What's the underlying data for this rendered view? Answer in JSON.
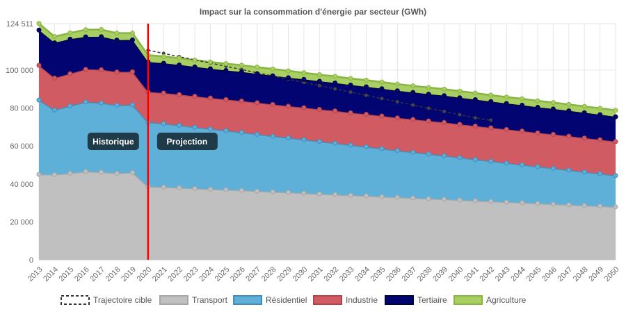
{
  "chart_data": {
    "type": "area",
    "stacked": true,
    "title": "Impact sur la consommation d'énergie par secteur (GWh)",
    "xlabel": "",
    "ylabel": "",
    "ylim": [
      0,
      124511
    ],
    "yticks": [
      0,
      20000,
      40000,
      60000,
      80000,
      100000,
      124511
    ],
    "ytick_labels": [
      "0",
      "20 000",
      "40 000",
      "60 000",
      "80 000",
      "100 000",
      "124 511"
    ],
    "categories": [
      "2013",
      "2014",
      "2015",
      "2016",
      "2017",
      "2018",
      "2019",
      "2020",
      "2021",
      "2022",
      "2023",
      "2024",
      "2025",
      "2026",
      "2027",
      "2028",
      "2029",
      "2030",
      "2031",
      "2032",
      "2033",
      "2034",
      "2035",
      "2036",
      "2037",
      "2038",
      "2039",
      "2040",
      "2041",
      "2042",
      "2043",
      "2044",
      "2045",
      "2046",
      "2047",
      "2048",
      "2049",
      "2050"
    ],
    "series": [
      {
        "name": "Transport",
        "color": "#c0c0c0",
        "stroke": "#a6a6a6",
        "values": [
          45000,
          44900,
          45600,
          46500,
          46200,
          45600,
          46000,
          38600,
          38300,
          38000,
          37600,
          37200,
          36900,
          36600,
          36200,
          35800,
          35500,
          35100,
          34700,
          34400,
          34000,
          33700,
          33300,
          32900,
          32600,
          32200,
          31900,
          31500,
          31100,
          30800,
          30400,
          30100,
          29700,
          29300,
          29000,
          28600,
          28300,
          27900
        ]
      },
      {
        "name": "Résidentiel",
        "color": "#5eb0d8",
        "stroke": "#3d8fbd",
        "values": [
          39200,
          34100,
          35500,
          36700,
          36500,
          35900,
          35700,
          33900,
          33500,
          32900,
          32300,
          31800,
          31200,
          30600,
          30000,
          29400,
          28800,
          28300,
          27700,
          27100,
          26500,
          25900,
          25300,
          24700,
          24100,
          23600,
          23000,
          22400,
          21800,
          21200,
          20600,
          20000,
          19400,
          18900,
          18300,
          17700,
          17100,
          16500
        ]
      },
      {
        "name": "Industrie",
        "color": "#d05b63",
        "stroke": "#b5424b",
        "values": [
          18300,
          16800,
          17000,
          17200,
          17500,
          17500,
          17400,
          16000,
          16100,
          16200,
          16300,
          16300,
          16400,
          16500,
          16600,
          16700,
          16700,
          16800,
          16900,
          17000,
          17000,
          17100,
          17200,
          17200,
          17300,
          17400,
          17500,
          17500,
          17600,
          17600,
          17700,
          17800,
          17800,
          17900,
          17900,
          17900,
          17900,
          17900
        ]
      },
      {
        "name": "Tertiaire",
        "color": "#020471",
        "stroke": "#01023f",
        "values": [
          18600,
          18600,
          18200,
          17100,
          17400,
          16800,
          16800,
          15800,
          15700,
          15600,
          15500,
          15400,
          15300,
          15300,
          15200,
          15100,
          15000,
          14900,
          14800,
          14700,
          14600,
          14500,
          14400,
          14300,
          14200,
          14100,
          14100,
          14000,
          13900,
          13800,
          13700,
          13600,
          13500,
          13400,
          13300,
          13300,
          13200,
          13100
        ]
      },
      {
        "name": "Agriculture",
        "color": "#a9cf64",
        "stroke": "#88b540",
        "values": [
          3500,
          3300,
          3300,
          3800,
          3800,
          3700,
          3600,
          3600,
          3600,
          3600,
          3600,
          3600,
          3600,
          3600,
          3600,
          3600,
          3600,
          3500,
          3500,
          3500,
          3500,
          3500,
          3500,
          3500,
          3500,
          3500,
          3500,
          3500,
          3500,
          3400,
          3400,
          3400,
          3400,
          3400,
          3400,
          3400,
          3400,
          3400
        ]
      }
    ],
    "target": {
      "name": "Trajectoire cible",
      "x_start": "2020",
      "values": [
        110500,
        108800,
        107100,
        105400,
        103700,
        102000,
        100300,
        98600,
        96900,
        95200,
        93500,
        91800,
        90100,
        88400,
        86700,
        85000,
        83300,
        81600,
        79900,
        78200,
        76500,
        74800,
        73600
      ]
    },
    "separator_year": "2020",
    "separator_color": "#ff0000",
    "annotations": [
      {
        "text": "Historique",
        "position": "left of separator"
      },
      {
        "text": "Projection",
        "position": "right of separator"
      }
    ],
    "legend": [
      "Trajectoire cible",
      "Transport",
      "Résidentiel",
      "Industrie",
      "Tertiaire",
      "Agriculture"
    ],
    "legend_placement": "bottom",
    "grid": true
  }
}
